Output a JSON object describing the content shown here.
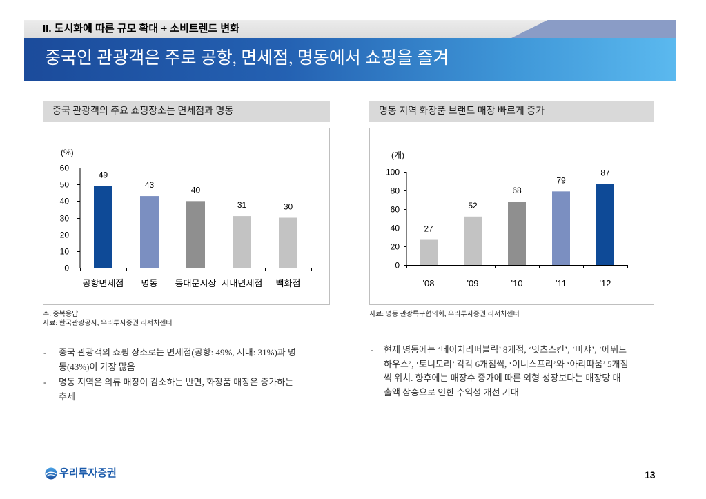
{
  "colors": {
    "banner_dark": "#1b4b9b",
    "banner_light": "#5bb9ef",
    "header_band": "#dcdcdc",
    "header_accent": "#8a9cc6",
    "panel_title_bg": "#d9d9d9",
    "brand_blue": "#1b5bab"
  },
  "header": {
    "section": "II. 도시화에 따른 규모 확대 + 소비트렌드 변화",
    "title": "중국인 관광객은 주로 공항, 면세점, 명동에서 쇼핑을 즐겨"
  },
  "panels": [
    {
      "notes": [
        "주: 중복응답",
        "자료: 한국관광공사, 우리투자증권 리서치센터"
      ],
      "bullet_marker": "-",
      "bullets": [
        {
          "lines": [
            "중국 관광객의 쇼핑 장소로는 면세점(공항: 49%, 시내: 31%)과 명",
            "동(43%)이 가장 많음"
          ]
        },
        {
          "lines": [
            "명동 지역은 의류 매장이 감소하는 반면, 화장품 매장은 증가하는",
            "추세"
          ]
        }
      ]
    },
    {
      "notes": [
        "자료: 명동 관광특구협의회, 우리투자증권 리서치센터"
      ],
      "bullet_marker": "-",
      "bullets": [
        {
          "lines": [
            "현재 명동에는 ‘네이처리퍼블릭’ 8개점, ‘잇츠스킨’, ‘미샤’, ‘에뛰드",
            "하우스’, ‘토니모리’ 각각 6개점씩, ‘이니스프리’와 ‘아리따움’ 5개점",
            "씩 위치. 향후에는 매장수 증가에 따른 외형 성장보다는 매장당 매",
            "출액 상승으로 인한 수익성 개선 기대"
          ]
        }
      ]
    }
  ],
  "chart_data": [
    {
      "type": "bar",
      "title": "중국 관광객의 주요 쇼핑장소는 면세점과 명동",
      "ylabel": "(%)",
      "categories": [
        "공항면세점",
        "명동",
        "동대문시장",
        "시내면세점",
        "백화점"
      ],
      "values": [
        49,
        43,
        40,
        31,
        30
      ],
      "bar_colors": [
        "#0e4a97",
        "#7b8fc1",
        "#8f8f8f",
        "#c3c3c3",
        "#c3c3c3"
      ],
      "ylim": [
        0,
        60
      ],
      "yticks": [
        0,
        10,
        20,
        30,
        40,
        50,
        60
      ],
      "grid": false
    },
    {
      "type": "bar",
      "title": "명동 지역 화장품 브랜드 매장 빠르게 증가",
      "ylabel": "(개)",
      "categories": [
        "'08",
        "'09",
        "'10",
        "'11",
        "'12"
      ],
      "values": [
        27,
        52,
        68,
        79,
        87
      ],
      "bar_colors": [
        "#c3c3c3",
        "#c3c3c3",
        "#8f8f8f",
        "#7b8fc1",
        "#0e4a97"
      ],
      "ylim": [
        0,
        100
      ],
      "yticks": [
        0,
        20,
        40,
        60,
        80,
        100
      ],
      "grid": false
    }
  ],
  "footer": {
    "logo_text": "우리투자증권",
    "page_number": "13"
  }
}
